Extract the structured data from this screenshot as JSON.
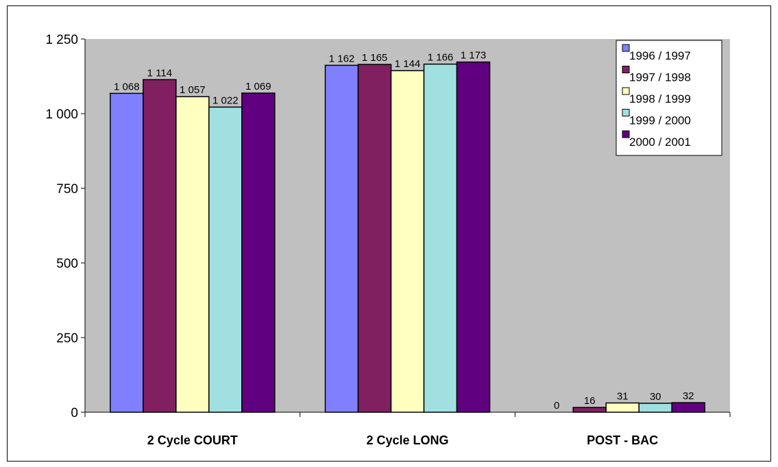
{
  "chart_data": {
    "type": "bar",
    "categories": [
      "2 Cycle COURT",
      "2 Cycle LONG",
      "POST - BAC"
    ],
    "series": [
      {
        "name": "1996 / 1997",
        "color": "#8080FF",
        "values": [
          1068,
          1162,
          0
        ],
        "labels": [
          "1 068",
          "1 162",
          "0"
        ]
      },
      {
        "name": "1997 / 1998",
        "color": "#802060",
        "values": [
          1114,
          1165,
          16
        ],
        "labels": [
          "1 114",
          "1 165",
          "16"
        ]
      },
      {
        "name": "1998 / 1999",
        "color": "#FFFFC0",
        "values": [
          1057,
          1144,
          31
        ],
        "labels": [
          "1 057",
          "1 144",
          "31"
        ]
      },
      {
        "name": "1999 / 2000",
        "color": "#A0E0E0",
        "values": [
          1022,
          1166,
          30
        ],
        "labels": [
          "1 022",
          "1 166",
          "30"
        ]
      },
      {
        "name": "2000 / 2001",
        "color": "#600080",
        "values": [
          1069,
          1173,
          32
        ],
        "labels": [
          "1 069",
          "1 173",
          "32"
        ]
      }
    ],
    "yticks": [
      0,
      250,
      500,
      750,
      1000,
      1250
    ],
    "ytick_labels": [
      "0",
      "250",
      "500",
      "750",
      "1 000",
      "1 250"
    ],
    "ylim": [
      0,
      1250
    ],
    "title": "",
    "xlabel": "",
    "ylabel": "",
    "legend_position": "top-right",
    "plot_background": "#C0C0C0",
    "grid": false
  }
}
